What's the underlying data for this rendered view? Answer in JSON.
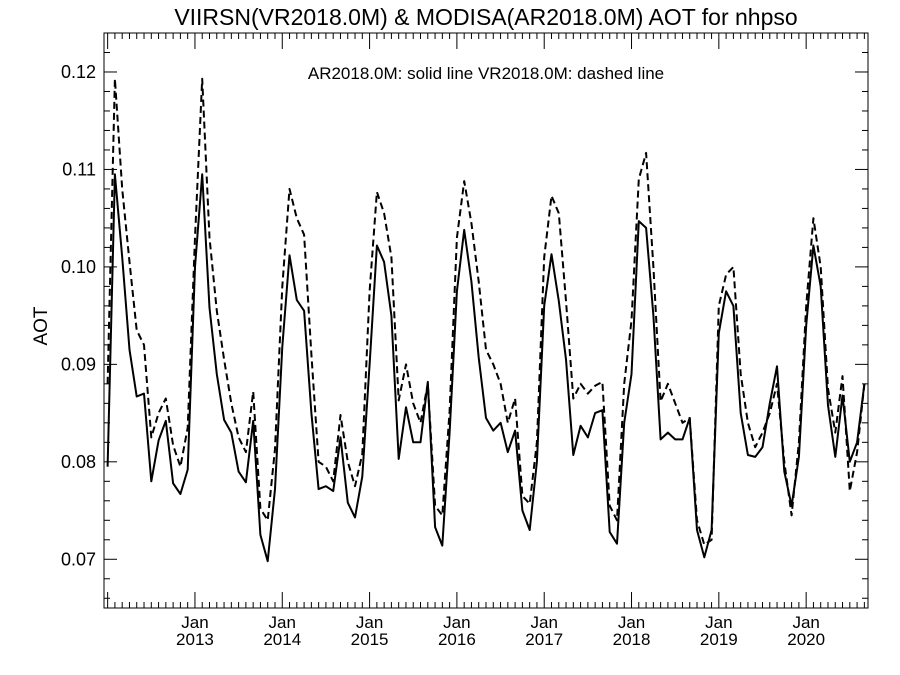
{
  "chart_data": {
    "type": "line",
    "title": "VIIRSN(VR2018.0M) & MODISA(AR2018.0M)  AOT for nhpso",
    "annotation": "AR2018.0M: solid line   VR2018.0M: dashed line",
    "ylabel": "AOT",
    "xlabel": "",
    "ylim": [
      0.065,
      0.124
    ],
    "yticks": [
      "0.07",
      "0.08",
      "0.09",
      "0.10",
      "0.11",
      "0.12"
    ],
    "x_start": "2012-01",
    "x_end": "2020-09",
    "x_ticks": [
      {
        "month": "Jan",
        "year": "2013"
      },
      {
        "month": "Jan",
        "year": "2014"
      },
      {
        "month": "Jan",
        "year": "2015"
      },
      {
        "month": "Jan",
        "year": "2016"
      },
      {
        "month": "Jan",
        "year": "2017"
      },
      {
        "month": "Jan",
        "year": "2018"
      },
      {
        "month": "Jan",
        "year": "2019"
      },
      {
        "month": "Jan",
        "year": "2020"
      }
    ],
    "grid": false,
    "series": [
      {
        "name": "AR2018.0M",
        "style": "solid",
        "color": "#000000",
        "x": [
          "2012-01",
          "2012-02",
          "2012-03",
          "2012-04",
          "2012-05",
          "2012-06",
          "2012-07",
          "2012-08",
          "2012-09",
          "2012-10",
          "2012-11",
          "2012-12",
          "2013-01",
          "2013-02",
          "2013-03",
          "2013-04",
          "2013-05",
          "2013-06",
          "2013-07",
          "2013-08",
          "2013-09",
          "2013-10",
          "2013-11",
          "2013-12",
          "2014-01",
          "2014-02",
          "2014-03",
          "2014-04",
          "2014-05",
          "2014-06",
          "2014-07",
          "2014-08",
          "2014-09",
          "2014-10",
          "2014-11",
          "2014-12",
          "2015-01",
          "2015-02",
          "2015-03",
          "2015-04",
          "2015-05",
          "2015-06",
          "2015-07",
          "2015-08",
          "2015-09",
          "2015-10",
          "2015-11",
          "2015-12",
          "2016-01",
          "2016-02",
          "2016-03",
          "2016-04",
          "2016-05",
          "2016-06",
          "2016-07",
          "2016-08",
          "2016-09",
          "2016-10",
          "2016-11",
          "2016-12",
          "2017-01",
          "2017-02",
          "2017-03",
          "2017-04",
          "2017-05",
          "2017-06",
          "2017-07",
          "2017-08",
          "2017-09",
          "2017-10",
          "2017-11",
          "2017-12",
          "2018-01",
          "2018-02",
          "2018-03",
          "2018-04",
          "2018-05",
          "2018-06",
          "2018-07",
          "2018-08",
          "2018-09",
          "2018-10",
          "2018-11",
          "2018-12",
          "2019-01",
          "2019-02",
          "2019-03",
          "2019-04",
          "2019-05",
          "2019-06",
          "2019-07",
          "2019-08",
          "2019-09",
          "2019-10",
          "2019-11",
          "2019-12",
          "2020-01",
          "2020-02",
          "2020-03",
          "2020-04",
          "2020-05",
          "2020-06",
          "2020-07",
          "2020-08",
          "2020-09"
        ],
        "values": [
          0.0795,
          0.1095,
          0.101,
          0.0915,
          0.0867,
          0.087,
          0.078,
          0.0822,
          0.0842,
          0.0778,
          0.0767,
          0.0792,
          0.1,
          0.1095,
          0.0958,
          0.089,
          0.0843,
          0.083,
          0.079,
          0.0779,
          0.0842,
          0.0725,
          0.0698,
          0.0772,
          0.0918,
          0.1012,
          0.0966,
          0.0955,
          0.085,
          0.0772,
          0.0775,
          0.077,
          0.0825,
          0.0758,
          0.0743,
          0.0785,
          0.09,
          0.1022,
          0.1005,
          0.095,
          0.0803,
          0.0856,
          0.082,
          0.082,
          0.0882,
          0.0733,
          0.0714,
          0.083,
          0.0975,
          0.1038,
          0.0985,
          0.0907,
          0.0845,
          0.0832,
          0.084,
          0.081,
          0.0832,
          0.075,
          0.073,
          0.08,
          0.096,
          0.1013,
          0.0965,
          0.0905,
          0.0807,
          0.0837,
          0.0825,
          0.085,
          0.0853,
          0.0728,
          0.0716,
          0.084,
          0.089,
          0.1047,
          0.104,
          0.095,
          0.0823,
          0.083,
          0.0823,
          0.0823,
          0.0845,
          0.073,
          0.0702,
          0.073,
          0.0932,
          0.0975,
          0.096,
          0.085,
          0.0807,
          0.0805,
          0.0815,
          0.086,
          0.0898,
          0.079,
          0.0755,
          0.0805,
          0.094,
          0.1022,
          0.098,
          0.0858,
          0.0805,
          0.0868,
          0.08,
          0.082,
          0.088
        ]
      },
      {
        "name": "VR2018.0M",
        "style": "dashed",
        "color": "#000000",
        "x": [
          "2012-01",
          "2012-02",
          "2012-03",
          "2012-04",
          "2012-05",
          "2012-06",
          "2012-07",
          "2012-08",
          "2012-09",
          "2012-10",
          "2012-11",
          "2012-12",
          "2013-01",
          "2013-02",
          "2013-03",
          "2013-04",
          "2013-05",
          "2013-06",
          "2013-07",
          "2013-08",
          "2013-09",
          "2013-10",
          "2013-11",
          "2013-12",
          "2014-01",
          "2014-02",
          "2014-03",
          "2014-04",
          "2014-05",
          "2014-06",
          "2014-07",
          "2014-08",
          "2014-09",
          "2014-10",
          "2014-11",
          "2014-12",
          "2015-01",
          "2015-02",
          "2015-03",
          "2015-04",
          "2015-05",
          "2015-06",
          "2015-07",
          "2015-08",
          "2015-09",
          "2015-10",
          "2015-11",
          "2015-12",
          "2016-01",
          "2016-02",
          "2016-03",
          "2016-04",
          "2016-05",
          "2016-06",
          "2016-07",
          "2016-08",
          "2016-09",
          "2016-10",
          "2016-11",
          "2016-12",
          "2017-01",
          "2017-02",
          "2017-03",
          "2017-04",
          "2017-05",
          "2017-06",
          "2017-07",
          "2017-08",
          "2017-09",
          "2017-10",
          "2017-11",
          "2017-12",
          "2018-01",
          "2018-02",
          "2018-03",
          "2018-04",
          "2018-05",
          "2018-06",
          "2018-07",
          "2018-08",
          "2018-09",
          "2018-10",
          "2018-11",
          "2018-12",
          "2019-01",
          "2019-02",
          "2019-03",
          "2019-04",
          "2019-05",
          "2019-06",
          "2019-07",
          "2019-08",
          "2019-09",
          "2019-10",
          "2019-11",
          "2019-12",
          "2020-01",
          "2020-02",
          "2020-03",
          "2020-04",
          "2020-05",
          "2020-06",
          "2020-07",
          "2020-08",
          "2020-09"
        ],
        "values": [
          0.088,
          0.1193,
          0.108,
          0.1005,
          0.0935,
          0.092,
          0.0825,
          0.085,
          0.0865,
          0.0817,
          0.0795,
          0.0835,
          0.103,
          0.1193,
          0.103,
          0.0955,
          0.0905,
          0.086,
          0.0825,
          0.081,
          0.0872,
          0.0752,
          0.074,
          0.0813,
          0.098,
          0.108,
          0.105,
          0.1033,
          0.091,
          0.08,
          0.0795,
          0.078,
          0.0848,
          0.08,
          0.0775,
          0.0808,
          0.0975,
          0.1077,
          0.1055,
          0.101,
          0.0863,
          0.09,
          0.086,
          0.084,
          0.088,
          0.0755,
          0.0745,
          0.0852,
          0.103,
          0.1088,
          0.1045,
          0.0985,
          0.0915,
          0.09,
          0.088,
          0.084,
          0.0865,
          0.0765,
          0.0757,
          0.082,
          0.101,
          0.1073,
          0.1055,
          0.0965,
          0.0865,
          0.088,
          0.087,
          0.0878,
          0.0882,
          0.0755,
          0.074,
          0.088,
          0.0945,
          0.109,
          0.1117,
          0.1,
          0.0862,
          0.088,
          0.086,
          0.084,
          0.0845,
          0.074,
          0.0715,
          0.072,
          0.096,
          0.0992,
          0.1,
          0.089,
          0.084,
          0.0815,
          0.083,
          0.085,
          0.088,
          0.08,
          0.0745,
          0.082,
          0.096,
          0.105,
          0.1,
          0.0875,
          0.083,
          0.0888,
          0.077,
          0.081,
          0.088
        ]
      }
    ]
  }
}
